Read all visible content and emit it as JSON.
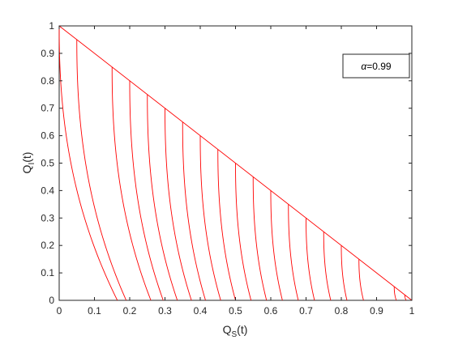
{
  "chart_data": {
    "type": "line",
    "xlabel": {
      "main": "Q",
      "sub": "S",
      "tail": "(t)"
    },
    "ylabel": {
      "main": "Q",
      "sub": "I",
      "tail": "(t)"
    },
    "xlim": [
      0,
      1
    ],
    "ylim": [
      0,
      1
    ],
    "xticks": [
      0,
      0.1,
      0.2,
      0.3,
      0.4,
      0.5,
      0.6,
      0.7,
      0.8,
      0.9,
      1
    ],
    "yticks": [
      0,
      0.1,
      0.2,
      0.3,
      0.4,
      0.5,
      0.6,
      0.7,
      0.8,
      0.9,
      1
    ],
    "xtick_labels": [
      "0",
      "0.1",
      "0.2",
      "0.3",
      "0.4",
      "0.5",
      "0.6",
      "0.7",
      "0.8",
      "0.9",
      "1"
    ],
    "ytick_labels": [
      "0",
      "0.1",
      "0.2",
      "0.3",
      "0.4",
      "0.5",
      "0.6",
      "0.7",
      "0.8",
      "0.9",
      "1"
    ],
    "annotation": {
      "symbol": "α",
      "text": "=0.99"
    },
    "grid": false,
    "color": "#ff0000",
    "boundary": {
      "x": [
        0,
        1
      ],
      "y": [
        1,
        0
      ]
    },
    "series": [
      {
        "x0": 0.0,
        "y0": 1.0,
        "decay": 0.165
      },
      {
        "x0": 0.05,
        "y0": 0.95,
        "decay": 0.14
      },
      {
        "x0": 0.15,
        "y0": 0.85,
        "decay": 0.11
      },
      {
        "x0": 0.2,
        "y0": 0.8,
        "decay": 0.095
      },
      {
        "x0": 0.25,
        "y0": 0.75,
        "decay": 0.085
      },
      {
        "x0": 0.3,
        "y0": 0.7,
        "decay": 0.075
      },
      {
        "x0": 0.35,
        "y0": 0.65,
        "decay": 0.065
      },
      {
        "x0": 0.4,
        "y0": 0.6,
        "decay": 0.058
      },
      {
        "x0": 0.45,
        "y0": 0.55,
        "decay": 0.05
      },
      {
        "x0": 0.5,
        "y0": 0.5,
        "decay": 0.044
      },
      {
        "x0": 0.55,
        "y0": 0.45,
        "decay": 0.038
      },
      {
        "x0": 0.6,
        "y0": 0.4,
        "decay": 0.033
      },
      {
        "x0": 0.65,
        "y0": 0.35,
        "decay": 0.028
      },
      {
        "x0": 0.7,
        "y0": 0.3,
        "decay": 0.024
      },
      {
        "x0": 0.75,
        "y0": 0.25,
        "decay": 0.02
      },
      {
        "x0": 0.8,
        "y0": 0.2,
        "decay": 0.016
      },
      {
        "x0": 0.85,
        "y0": 0.15,
        "decay": 0.013
      },
      {
        "x0": 0.95,
        "y0": 0.05,
        "decay": 0.006
      },
      {
        "x0": 0.98,
        "y0": 0.02,
        "decay": 0.004
      }
    ]
  }
}
